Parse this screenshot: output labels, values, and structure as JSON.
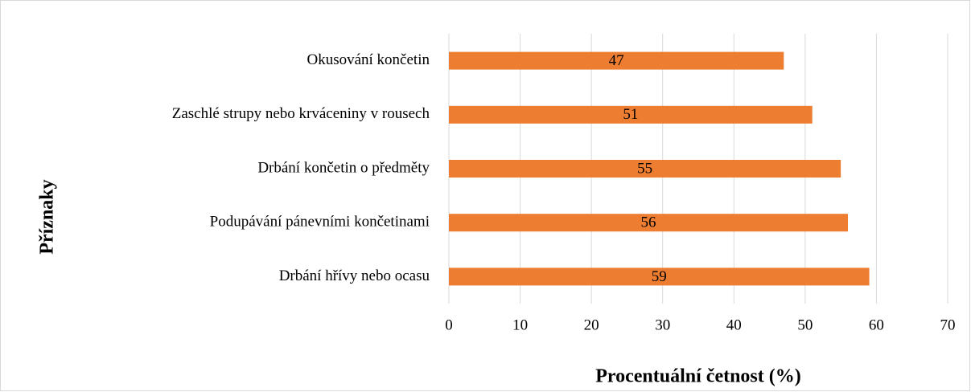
{
  "chart_data": {
    "type": "bar",
    "orientation": "horizontal",
    "categories": [
      "Okusování končetin",
      "Zaschlé strupy nebo krváceniny v rousech",
      "Drbání končetin o předměty",
      "Podupávání pánevními končetinami",
      "Drbání hřívy nebo ocasu"
    ],
    "values": [
      47,
      51,
      55,
      56,
      59
    ],
    "color": "#ed7d31",
    "xlabel": "Procentuální četnost (%)",
    "ylabel": "Příznaky",
    "xlim": [
      0,
      70
    ],
    "xticks": [
      0,
      10,
      20,
      30,
      40,
      50,
      60,
      70
    ],
    "grid": true
  }
}
